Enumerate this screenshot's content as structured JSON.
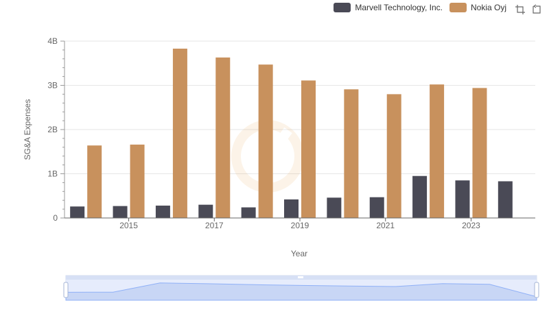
{
  "colors": {
    "marvell": "#4a4a56",
    "nokia": "#c8915d",
    "grid": "#e6e6e6",
    "axis": "#666666"
  },
  "legend": {
    "items": [
      {
        "label": "Marvell Technology, Inc.",
        "color": "#4a4a56"
      },
      {
        "label": "Nokia Oyj",
        "color": "#c8915d"
      }
    ]
  },
  "toolbox": {
    "icons": [
      "zoom-icon",
      "restore-icon"
    ]
  },
  "chart_data": {
    "type": "bar",
    "xlabel": "Year",
    "ylabel": "SG&A Expenses",
    "x": [
      2014,
      2015,
      2016,
      2017,
      2018,
      2019,
      2020,
      2021,
      2022,
      2023,
      2024
    ],
    "x_tick_labels": [
      "2015",
      "2017",
      "2019",
      "2021",
      "2023"
    ],
    "y_tick_labels": [
      "0",
      "1B",
      "2B",
      "3B",
      "4B"
    ],
    "ylim": [
      0,
      4000000000
    ],
    "grid": true,
    "legend_position": "top-right",
    "series": [
      {
        "name": "Marvell Technology, Inc.",
        "color": "#4a4a56",
        "values": [
          260000000,
          270000000,
          280000000,
          300000000,
          240000000,
          420000000,
          460000000,
          470000000,
          950000000,
          850000000,
          830000000
        ]
      },
      {
        "name": "Nokia Oyj",
        "color": "#c8915d",
        "values": [
          1640000000,
          1660000000,
          3830000000,
          3630000000,
          3470000000,
          3110000000,
          2910000000,
          2800000000,
          3020000000,
          2940000000,
          null
        ]
      }
    ]
  }
}
